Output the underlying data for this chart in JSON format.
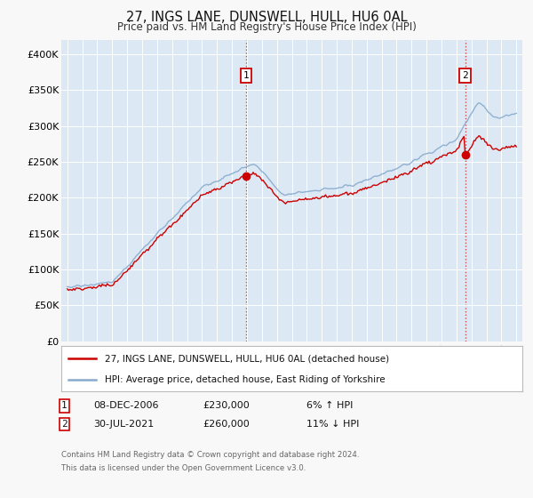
{
  "title": "27, INGS LANE, DUNSWELL, HULL, HU6 0AL",
  "subtitle": "Price paid vs. HM Land Registry's House Price Index (HPI)",
  "background_color": "#f5f5f5",
  "plot_bg_color": "#dce9f5",
  "grid_color": "#ffffff",
  "sale1_price": 230000,
  "sale1_x": 2006.94,
  "sale2_price": 260000,
  "sale2_x": 2021.58,
  "legend_line1": "27, INGS LANE, DUNSWELL, HULL, HU6 0AL (detached house)",
  "legend_line2": "HPI: Average price, detached house, East Riding of Yorkshire",
  "footer3": "Contains HM Land Registry data © Crown copyright and database right 2024.",
  "footer4": "This data is licensed under the Open Government Licence v3.0.",
  "red_color": "#cc0000",
  "blue_color": "#88aacc",
  "ylim_max": 420000,
  "xlim_start": 1994.6,
  "xlim_end": 2025.4
}
